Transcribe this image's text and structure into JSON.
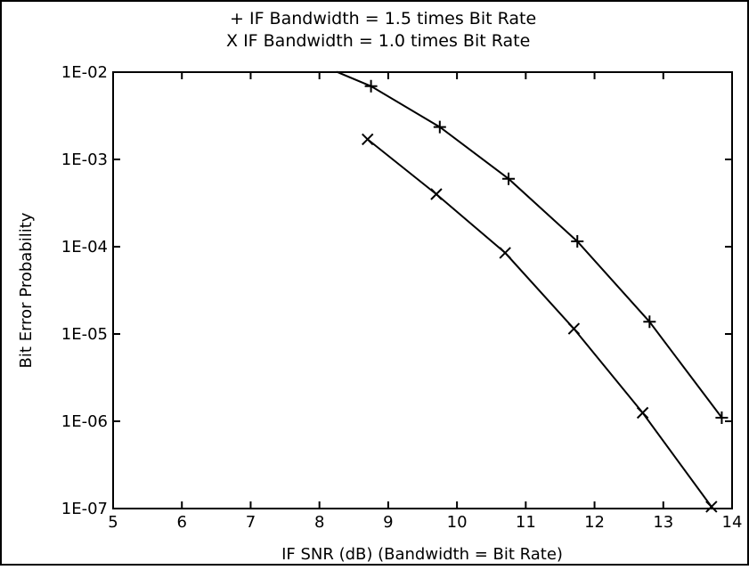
{
  "chart_data": {
    "type": "line",
    "legend": [
      {
        "symbol": "+",
        "text": "IF Bandwidth = 1.5 times Bit Rate"
      },
      {
        "symbol": "X",
        "text": "IF Bandwidth = 1.0 times Bit Rate"
      }
    ],
    "xlabel": "IF SNR (dB) (Bandwidth = Bit Rate)",
    "ylabel": "Bit Error Probability",
    "xlim": [
      5,
      14
    ],
    "ylim": [
      1e-07,
      0.01
    ],
    "yscale": "log",
    "grid": false,
    "xticks": [
      5,
      6,
      7,
      8,
      9,
      10,
      11,
      12,
      13,
      14
    ],
    "xtick_labels": [
      "5",
      "6",
      "7",
      "8",
      "9",
      "10",
      "11",
      "12",
      "13",
      "14"
    ],
    "yticks": [
      0.01,
      0.001,
      0.0001,
      1e-05,
      1e-06,
      1e-07
    ],
    "ytick_labels": [
      "1E-02",
      "1E-03",
      "1E-04",
      "1E-05",
      "1E-06",
      "1E-07"
    ],
    "series": [
      {
        "marker": "plus",
        "x": [
          8.25,
          8.75,
          9.75,
          10.75,
          11.75,
          12.8,
          13.85
        ],
        "y": [
          0.0101,
          0.0069,
          0.00235,
          0.0006,
          0.000115,
          1.38e-05,
          1.1e-06
        ],
        "marker_from_index": 1
      },
      {
        "marker": "x",
        "x": [
          8.7,
          9.7,
          10.7,
          11.7,
          12.7,
          13.7
        ],
        "y": [
          0.0017,
          0.0004,
          8.5e-05,
          1.15e-05,
          1.25e-06,
          1.05e-07
        ],
        "marker_from_index": 0
      }
    ]
  }
}
